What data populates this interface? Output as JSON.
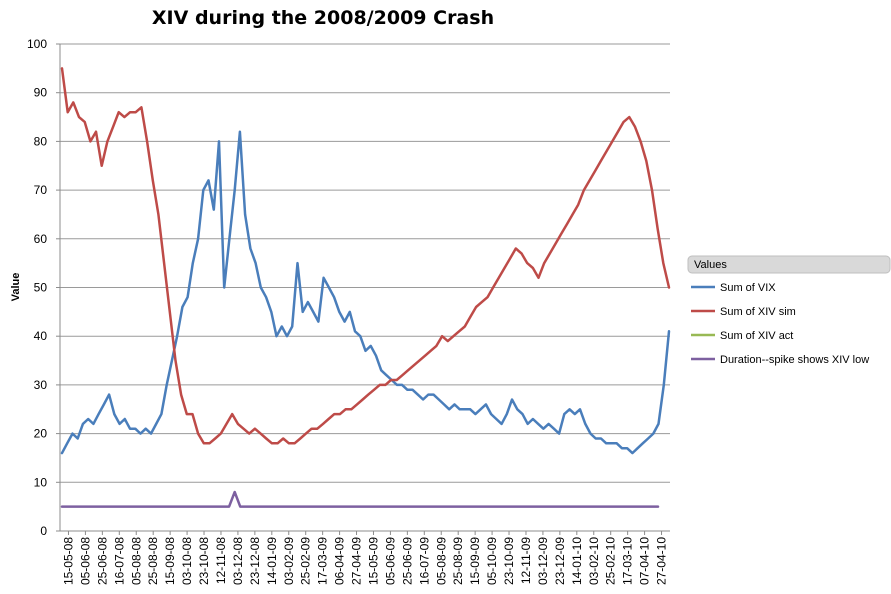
{
  "chart_data": {
    "type": "line",
    "title": "XIV during the 2008/2009 Crash",
    "xlabel": "",
    "ylabel": "Value",
    "ylim": [
      0,
      100
    ],
    "yticks": [
      0,
      10,
      20,
      30,
      40,
      50,
      60,
      70,
      80,
      90,
      100
    ],
    "grid": "horizontal",
    "legend_title": "Values",
    "legend_position": "right",
    "x_ticks": [
      "15-05-08",
      "05-06-08",
      "25-06-08",
      "16-07-08",
      "05-08-08",
      "25-08-08",
      "15-09-08",
      "03-10-08",
      "23-10-08",
      "12-11-08",
      "03-12-08",
      "23-12-08",
      "14-01-09",
      "03-02-09",
      "25-02-09",
      "17-03-09",
      "06-04-09",
      "27-04-09",
      "15-05-09",
      "05-06-09",
      "25-06-09",
      "16-07-09",
      "05-08-09",
      "25-08-09",
      "15-09-09",
      "05-10-09",
      "23-10-09",
      "12-11-09",
      "03-12-09",
      "23-12-09",
      "14-01-10",
      "03-02-10",
      "25-02-10",
      "17-03-10",
      "07-04-10",
      "27-04-10"
    ],
    "series": [
      {
        "name": "Sum of VIX",
        "color": "#4a7ebb",
        "values": [
          16,
          18,
          20,
          19,
          22,
          23,
          22,
          24,
          26,
          28,
          24,
          22,
          23,
          21,
          21,
          20,
          21,
          20,
          22,
          24,
          30,
          35,
          40,
          46,
          48,
          55,
          60,
          70,
          72,
          66,
          80,
          50,
          60,
          70,
          82,
          65,
          58,
          55,
          50,
          48,
          45,
          40,
          42,
          40,
          42,
          55,
          45,
          47,
          45,
          43,
          52,
          50,
          48,
          45,
          43,
          45,
          41,
          40,
          37,
          38,
          36,
          33,
          32,
          31,
          30,
          30,
          29,
          29,
          28,
          27,
          28,
          28,
          27,
          26,
          25,
          26,
          25,
          25,
          25,
          24,
          25,
          26,
          24,
          23,
          22,
          24,
          27,
          25,
          24,
          22,
          23,
          22,
          21,
          22,
          21,
          20,
          24,
          25,
          24,
          25,
          22,
          20,
          19,
          19,
          18,
          18,
          18,
          17,
          17,
          16,
          17,
          18,
          19,
          20,
          22,
          30,
          41
        ]
      },
      {
        "name": "Sum of XIV sim",
        "color": "#be4b48",
        "values": [
          95,
          86,
          88,
          85,
          84,
          80,
          82,
          75,
          80,
          83,
          86,
          85,
          86,
          86,
          87,
          80,
          72,
          65,
          55,
          45,
          35,
          28,
          24,
          24,
          20,
          18,
          18,
          19,
          20,
          22,
          24,
          22,
          21,
          20,
          21,
          20,
          19,
          18,
          18,
          19,
          18,
          18,
          19,
          20,
          21,
          21,
          22,
          23,
          24,
          24,
          25,
          25,
          26,
          27,
          28,
          29,
          30,
          30,
          31,
          31,
          32,
          33,
          34,
          35,
          36,
          37,
          38,
          40,
          39,
          40,
          41,
          42,
          44,
          46,
          47,
          48,
          50,
          52,
          54,
          56,
          58,
          57,
          55,
          54,
          52,
          55,
          57,
          59,
          61,
          63,
          65,
          67,
          70,
          72,
          74,
          76,
          78,
          80,
          82,
          84,
          85,
          83,
          80,
          76,
          70,
          62,
          55,
          50
        ]
      },
      {
        "name": "Sum of XIV act",
        "color": "#98b954",
        "values": []
      },
      {
        "name": "Duration--spike shows XIV low",
        "color": "#7d60a0",
        "values": [
          5,
          5,
          5,
          5,
          5,
          5,
          5,
          5,
          5,
          5,
          5,
          5,
          5,
          5,
          5,
          5,
          5,
          5,
          5,
          5,
          5,
          5,
          5,
          5,
          5,
          5,
          5,
          5,
          5,
          5,
          5,
          8,
          5,
          5,
          5,
          5,
          5,
          5,
          5,
          5,
          5,
          5,
          5,
          5,
          5,
          5,
          5,
          5,
          5,
          5,
          5,
          5,
          5,
          5,
          5,
          5,
          5,
          5,
          5,
          5,
          5,
          5,
          5,
          5,
          5,
          5,
          5,
          5,
          5,
          5,
          5,
          5,
          5,
          5,
          5,
          5,
          5,
          5,
          5,
          5,
          5,
          5,
          5,
          5,
          5,
          5,
          5,
          5,
          5,
          5,
          5,
          5,
          5,
          5,
          5,
          5,
          5,
          5,
          5,
          5,
          5,
          5,
          5,
          5,
          5,
          5,
          5,
          5
        ]
      }
    ]
  }
}
